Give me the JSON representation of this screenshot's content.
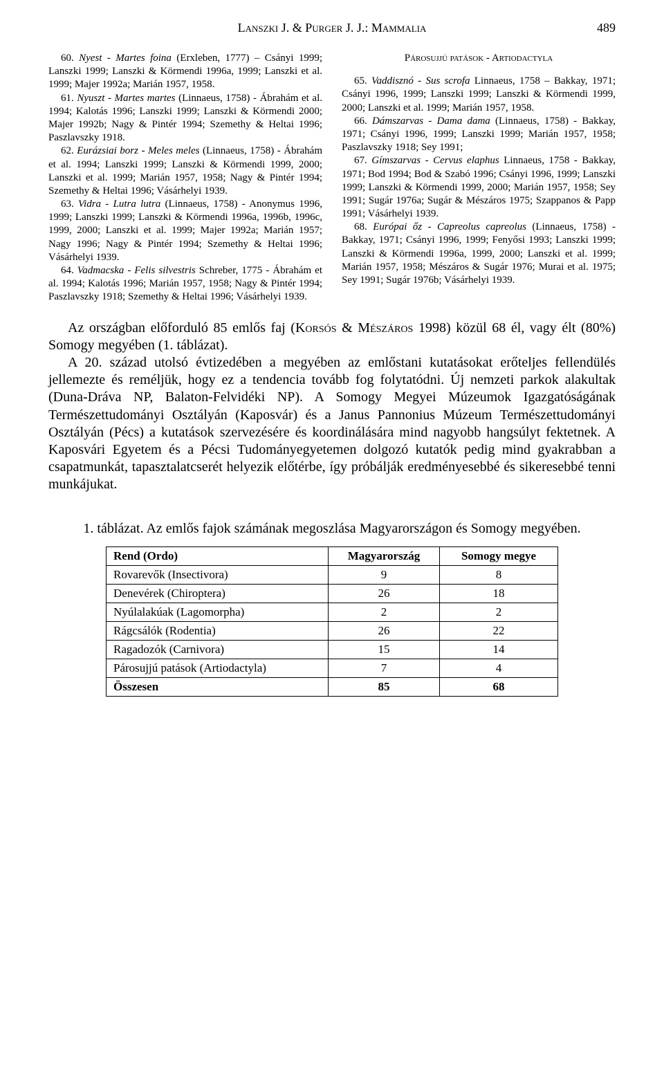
{
  "page": {
    "running_head": "Lanszki J. & Purger J. J.: Mammalia",
    "page_number": "489"
  },
  "left_column": [
    {
      "n": "60.",
      "sp": "Nyest - Martes foina",
      "auth": " (Erxleben, 1777) – Csányi 1999; Lanszki 1999; Lanszki & Körmendi 1996a, 1999; Lanszki et al. 1999; Majer 1992a; Marián 1957, 1958."
    },
    {
      "n": "61.",
      "sp": "Nyuszt - Martes martes",
      "auth": " (Linnaeus, 1758) - Ábrahám et al. 1994; Kalotás 1996; Lanszki 1999; Lanszki & Körmendi 2000; Majer 1992b; Nagy & Pintér 1994; Szemethy & Heltai 1996; Paszlavszky 1918."
    },
    {
      "n": "62.",
      "sp": "Eurázsiai borz - Meles meles",
      "auth": " (Linnaeus, 1758) - Ábrahám et al. 1994; Lanszki 1999; Lanszki & Körmendi 1999, 2000; Lanszki et al. 1999; Marián 1957, 1958; Nagy & Pintér 1994; Szemethy & Heltai 1996; Vásárhelyi 1939."
    },
    {
      "n": "63.",
      "sp": "Vidra - Lutra lutra",
      "auth": " (Linnaeus, 1758) - Anonymus 1996, 1999; Lanszki 1999; Lanszki & Körmendi 1996a, 1996b, 1996c, 1999, 2000; Lanszki et al. 1999; Majer 1992a; Marián 1957; Nagy 1996; Nagy & Pintér 1994; Szemethy & Heltai 1996; Vásárhelyi 1939."
    },
    {
      "n": "64.",
      "sp": "Vadmacska - Felis silvestris",
      "auth": " Schreber, 1775 - Ábrahám et al. 1994; Kalotás 1996; Marián 1957, 1958; Nagy & Pintér 1994; Paszlavszky 1918; Szemethy & Heltai 1996; Vásárhelyi 1939."
    }
  ],
  "right_heading": "Párosujjú patások - Artiodactyla",
  "right_column": [
    {
      "n": "65.",
      "sp": "Vaddisznó - Sus scrofa",
      "auth": " Linnaeus, 1758 – Bakkay, 1971; Csányi 1996, 1999; Lanszki 1999; Lanszki & Körmendi 1999, 2000; Lanszki et al. 1999; Marián 1957, 1958."
    },
    {
      "n": "66.",
      "sp": "Dámszarvas - Dama dama",
      "auth": " (Linnaeus, 1758) - Bakkay, 1971; Csányi 1996, 1999; Lanszki 1999; Marián 1957, 1958; Paszlavszky 1918; Sey 1991;"
    },
    {
      "n": "67.",
      "sp": "Gímszarvas - Cervus elaphus",
      "auth": " Linnaeus, 1758 - Bakkay, 1971; Bod 1994; Bod & Szabó 1996; Csányi 1996, 1999; Lanszki 1999; Lanszki & Körmendi 1999, 2000; Marián 1957, 1958; Sey 1991; Sugár 1976a; Sugár & Mészáros 1975; Szappanos & Papp 1991; Vásárhelyi 1939."
    },
    {
      "n": "68.",
      "sp": "Európai őz - Capreolus capreolus",
      "auth": " (Linnaeus, 1758) - Bakkay, 1971; Csányi 1996, 1999; Fenyősi 1993; Lanszki 1999; Lanszki & Körmendi 1996a, 1999, 2000; Lanszki et al. 1999; Marián 1957, 1958; Mészáros & Sugár 1976; Murai et al. 1975; Sey 1991; Sugár 1976b; Vásárhelyi 1939."
    }
  ],
  "summary": {
    "p1a": "Az országban előforduló 85 emlős faj (",
    "p1_sc": "Korsós & Mészáros",
    "p1b": " 1998) közül 68 él, vagy élt (80%) Somogy megyében (1. táblázat).",
    "p2": "A 20. század utolsó évtizedében a megyében az emlőstani kutatásokat erőteljes fellendülés jellemezte és reméljük, hogy ez a tendencia tovább fog folytatódni. Új nemzeti parkok alakultak (Duna-Dráva NP, Balaton-Felvidéki NP). A Somogy Megyei Múzeumok Igazgatóságának Természettudományi Osztályán (Kaposvár) és a Janus Pannonius Múzeum Természettudományi Osztályán (Pécs) a kutatások szervezésére és koordinálására mind nagyobb hangsúlyt fektetnek. A Kaposvári Egyetem és a Pécsi Tudományegyetemen dolgozó kutatók pedig mind gyakrabban a csapatmunkát, tapasztalatcserét helyezik előtérbe, így próbálják eredményesebbé és sikeresebbé tenni munkájukat."
  },
  "table": {
    "caption": "1. táblázat. Az emlős fajok számának megoszlása Magyarországon és Somogy megyében.",
    "columns": [
      "Rend (Ordo)",
      "Magyarország",
      "Somogy megye"
    ],
    "rows": [
      [
        "Rovarevők (Insectivora)",
        "9",
        "8"
      ],
      [
        "Denevérek (Chiroptera)",
        "26",
        "18"
      ],
      [
        "Nyúlalakúak (Lagomorpha)",
        "2",
        "2"
      ],
      [
        "Rágcsálók (Rodentia)",
        "26",
        "22"
      ],
      [
        "Ragadozók (Carnivora)",
        "15",
        "14"
      ],
      [
        "Párosujjú patások (Artiodactyla)",
        "7",
        "4"
      ],
      [
        "Összesen",
        "85",
        "68"
      ]
    ],
    "col_widths": [
      "300px",
      "140px",
      "150px"
    ],
    "font_size": 17,
    "border_color": "#000000"
  },
  "colors": {
    "background": "#ffffff",
    "text": "#000000"
  }
}
